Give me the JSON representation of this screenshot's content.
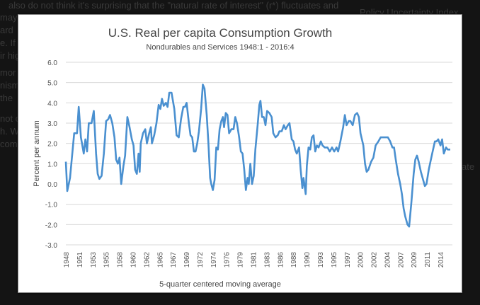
{
  "background_page": {
    "lines": [
      "also do not think it's surprising that the \"natural rate of interest\" (r*) fluctuates and",
      "may",
      "ard",
      "e. If",
      "ir hig",
      "mor",
      "nism",
      "the",
      "not c",
      "h. W",
      "com"
    ],
    "sidebar_title": "Policy Uncertainty Index",
    "sidebar_fragment": "ate"
  },
  "chart_data": {
    "type": "line",
    "title": "U.S. Real per capita Consumption Growth",
    "subtitle": "Nondurables and Services 1948:1 - 2016:4",
    "ylabel": "Percent per annum",
    "xlabel": "5-quarter centered moving average",
    "ylim": [
      -3.0,
      6.0
    ],
    "xlim": [
      1948.0,
      2016.75
    ],
    "yticks": [
      "6.0",
      "5.0",
      "4.0",
      "3.0",
      "2.0",
      "1.0",
      "0.0",
      "-1.0",
      "-2.0",
      "-3.0"
    ],
    "xticks": [
      "1948",
      "1951",
      "1953",
      "1955",
      "1958",
      "1960",
      "1962",
      "1965",
      "1967",
      "1969",
      "1972",
      "1974",
      "1976",
      "1979",
      "1981",
      "1983",
      "1986",
      "1988",
      "1990",
      "1993",
      "1995",
      "1997",
      "2000",
      "2002",
      "2004",
      "2007",
      "2009",
      "2011",
      "2014"
    ],
    "grid": true,
    "color": "#4a90d0",
    "series": [
      {
        "x": [
          1948.0,
          1948.25,
          1948.75,
          1949.5,
          1950.0,
          1950.3,
          1950.7,
          1951.2,
          1951.5,
          1951.8,
          1952.1,
          1952.6,
          1953.0,
          1953.4,
          1953.7,
          1954.0,
          1954.4,
          1954.8,
          1955.2,
          1955.6,
          1955.9,
          1956.3,
          1956.7,
          1957.0,
          1957.3,
          1957.6,
          1957.9,
          1958.3,
          1958.6,
          1959.0,
          1959.4,
          1959.8,
          1960.1,
          1960.4,
          1960.7,
          1961.0,
          1961.2,
          1961.4,
          1961.8,
          1962.2,
          1962.5,
          1962.9,
          1963.2,
          1963.4,
          1963.8,
          1964.2,
          1964.6,
          1964.9,
          1965.2,
          1965.5,
          1965.9,
          1966.2,
          1966.5,
          1966.9,
          1967.4,
          1967.8,
          1968.2,
          1968.6,
          1969.0,
          1969.3,
          1969.6,
          1970.0,
          1970.3,
          1970.6,
          1970.9,
          1971.2,
          1971.5,
          1971.8,
          1972.2,
          1972.5,
          1972.8,
          1973.2,
          1973.5,
          1973.8,
          1974.0,
          1974.3,
          1974.6,
          1974.9,
          1975.2,
          1975.5,
          1975.8,
          1976.1,
          1976.3,
          1976.6,
          1976.9,
          1977.2,
          1977.6,
          1978.0,
          1978.3,
          1978.6,
          1979.0,
          1979.3,
          1979.6,
          1979.9,
          1980.2,
          1980.5,
          1980.7,
          1981.0,
          1981.3,
          1981.6,
          1981.9,
          1982.3,
          1982.6,
          1982.8,
          1983.1,
          1983.4,
          1983.7,
          1984.0,
          1984.4,
          1984.8,
          1985.1,
          1985.5,
          1985.9,
          1986.2,
          1986.6,
          1987.0,
          1987.3,
          1987.7,
          1988.0,
          1988.4,
          1988.7,
          1989.0,
          1989.3,
          1989.7,
          1990.0,
          1990.3,
          1990.5,
          1990.9,
          1991.1,
          1991.4,
          1991.7,
          1992.0,
          1992.3,
          1992.6,
          1992.9,
          1993.2,
          1993.6,
          1993.9,
          1994.3,
          1994.8,
          1995.2,
          1995.6,
          1996.0,
          1996.4,
          1996.7,
          1997.1,
          1997.6,
          1997.9,
          1998.2,
          1998.6,
          1998.9,
          1999.3,
          1999.7,
          2000.1,
          2000.4,
          2000.7,
          2001.2,
          2001.5,
          2001.8,
          2002.1,
          2002.6,
          2003.0,
          2003.4,
          2003.9,
          2004.3,
          2004.7,
          2005.2,
          2005.6,
          2006.0,
          2006.4,
          2006.7,
          2007.0,
          2007.4,
          2007.8,
          2008.1,
          2008.4,
          2008.7,
          2009.1,
          2009.4,
          2009.8,
          2010.2,
          2010.5,
          2010.8,
          2011.1,
          2011.5,
          2011.9,
          2012.2,
          2012.5,
          2012.9,
          2013.2,
          2013.6,
          2014.0,
          2014.3,
          2014.6,
          2015.0,
          2015.3,
          2015.6,
          2016.0,
          2016.3,
          2016.75
        ],
        "y": [
          1.1,
          -0.35,
          0.3,
          2.5,
          2.5,
          3.8,
          2.3,
          1.5,
          2.2,
          1.6,
          3.0,
          3.0,
          3.6,
          1.5,
          0.5,
          0.25,
          0.4,
          1.5,
          3.1,
          3.2,
          3.4,
          3.0,
          2.3,
          1.2,
          1.0,
          1.3,
          0.0,
          0.9,
          1.4,
          3.3,
          2.8,
          2.2,
          1.9,
          0.7,
          0.5,
          1.5,
          0.6,
          2.0,
          2.5,
          2.7,
          2.0,
          2.5,
          2.8,
          2.0,
          2.4,
          3.0,
          3.9,
          3.7,
          4.2,
          3.85,
          4.0,
          3.8,
          4.5,
          4.5,
          3.7,
          2.4,
          2.3,
          3.2,
          3.8,
          3.8,
          4.0,
          3.0,
          2.4,
          2.3,
          1.6,
          1.6,
          2.0,
          2.6,
          3.7,
          4.9,
          4.7,
          3.4,
          2.0,
          0.3,
          0.0,
          -0.3,
          0.2,
          1.8,
          1.7,
          2.7,
          3.1,
          3.3,
          2.8,
          3.5,
          3.4,
          2.5,
          2.7,
          2.7,
          3.3,
          3.0,
          2.3,
          1.6,
          1.5,
          0.7,
          -0.3,
          0.3,
          0.0,
          1.0,
          0.0,
          0.4,
          1.7,
          2.9,
          3.9,
          4.1,
          3.3,
          3.3,
          2.9,
          3.6,
          3.5,
          3.3,
          2.5,
          2.3,
          2.4,
          2.6,
          2.6,
          2.9,
          2.7,
          2.9,
          3.0,
          2.2,
          2.1,
          1.7,
          1.5,
          1.8,
          0.7,
          -0.2,
          0.3,
          -0.5,
          0.9,
          1.8,
          1.7,
          2.3,
          2.4,
          1.6,
          1.9,
          1.8,
          2.1,
          1.9,
          1.8,
          1.8,
          1.6,
          1.8,
          1.6,
          1.8,
          1.6,
          2.1,
          2.8,
          3.4,
          2.9,
          3.1,
          3.1,
          2.9,
          3.4,
          3.5,
          3.3,
          2.5,
          1.9,
          1.0,
          0.6,
          0.7,
          1.1,
          1.3,
          1.9,
          2.1,
          2.3,
          2.3,
          2.3,
          2.3,
          2.1,
          1.8,
          1.8,
          1.2,
          0.5,
          0.0,
          -0.5,
          -1.2,
          -1.6,
          -2.0,
          -2.1,
          -0.9,
          0.5,
          1.2,
          1.4,
          1.1,
          0.6,
          0.2,
          -0.1,
          0.0,
          0.7,
          1.1,
          1.6,
          2.1,
          2.1,
          2.2,
          1.9,
          2.2,
          1.5,
          1.8,
          1.7,
          1.7
        ]
      }
    ]
  }
}
